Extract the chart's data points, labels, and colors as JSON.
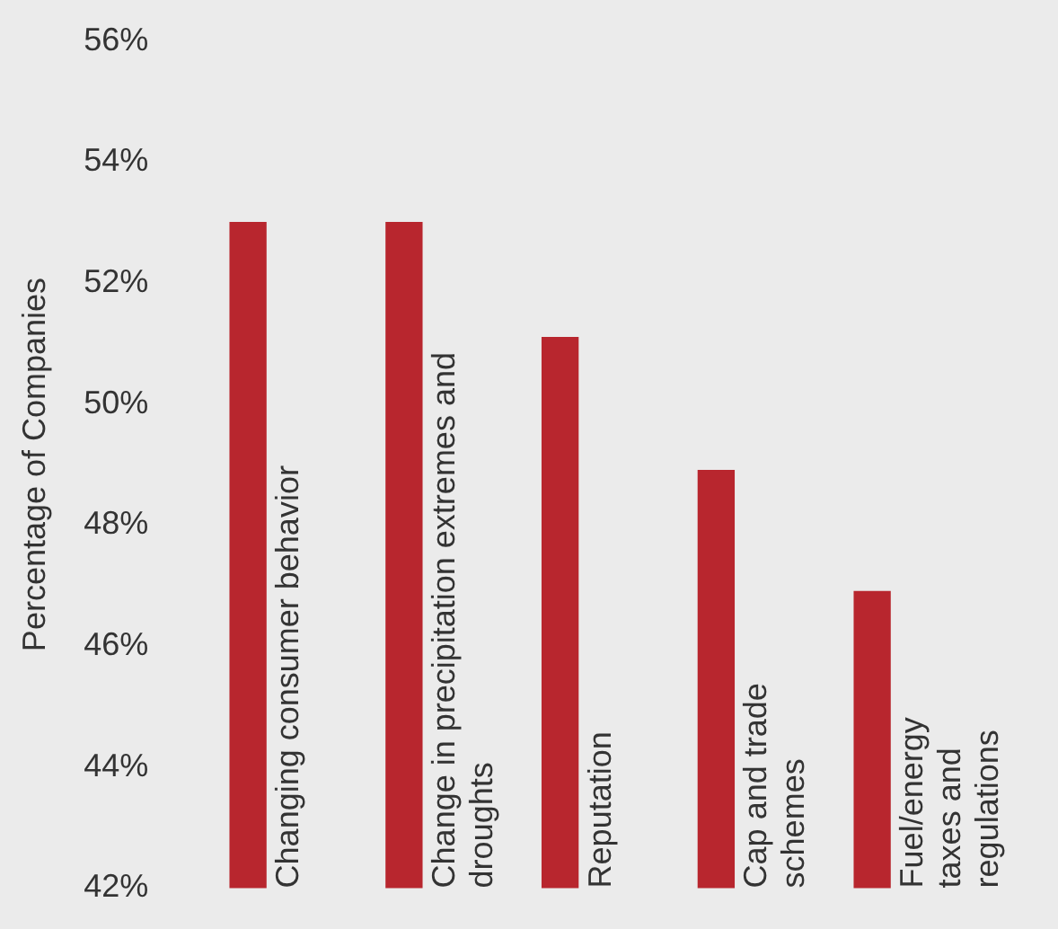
{
  "chart_data": {
    "type": "bar",
    "ylabel": "Percentage of Companies",
    "categories": [
      "Changing consumer behavior",
      "Change in precipitation extremes and\ndroughts",
      "Reputation",
      "Cap and trade\nschemes",
      "Fuel/energy\ntaxes and\nregulations"
    ],
    "values": [
      53,
      53,
      51.1,
      48.9,
      46.9
    ],
    "color": "#b8262e",
    "ylim": [
      42,
      56
    ],
    "yticks": [
      {
        "value": 42,
        "label": "42%"
      },
      {
        "value": 44,
        "label": "44%"
      },
      {
        "value": 46,
        "label": "46%"
      },
      {
        "value": 48,
        "label": "48%"
      },
      {
        "value": 50,
        "label": "50%"
      },
      {
        "value": 52,
        "label": "52%"
      },
      {
        "value": 54,
        "label": "54%"
      },
      {
        "value": 56,
        "label": "56%"
      }
    ],
    "grid": false,
    "legend": false
  }
}
